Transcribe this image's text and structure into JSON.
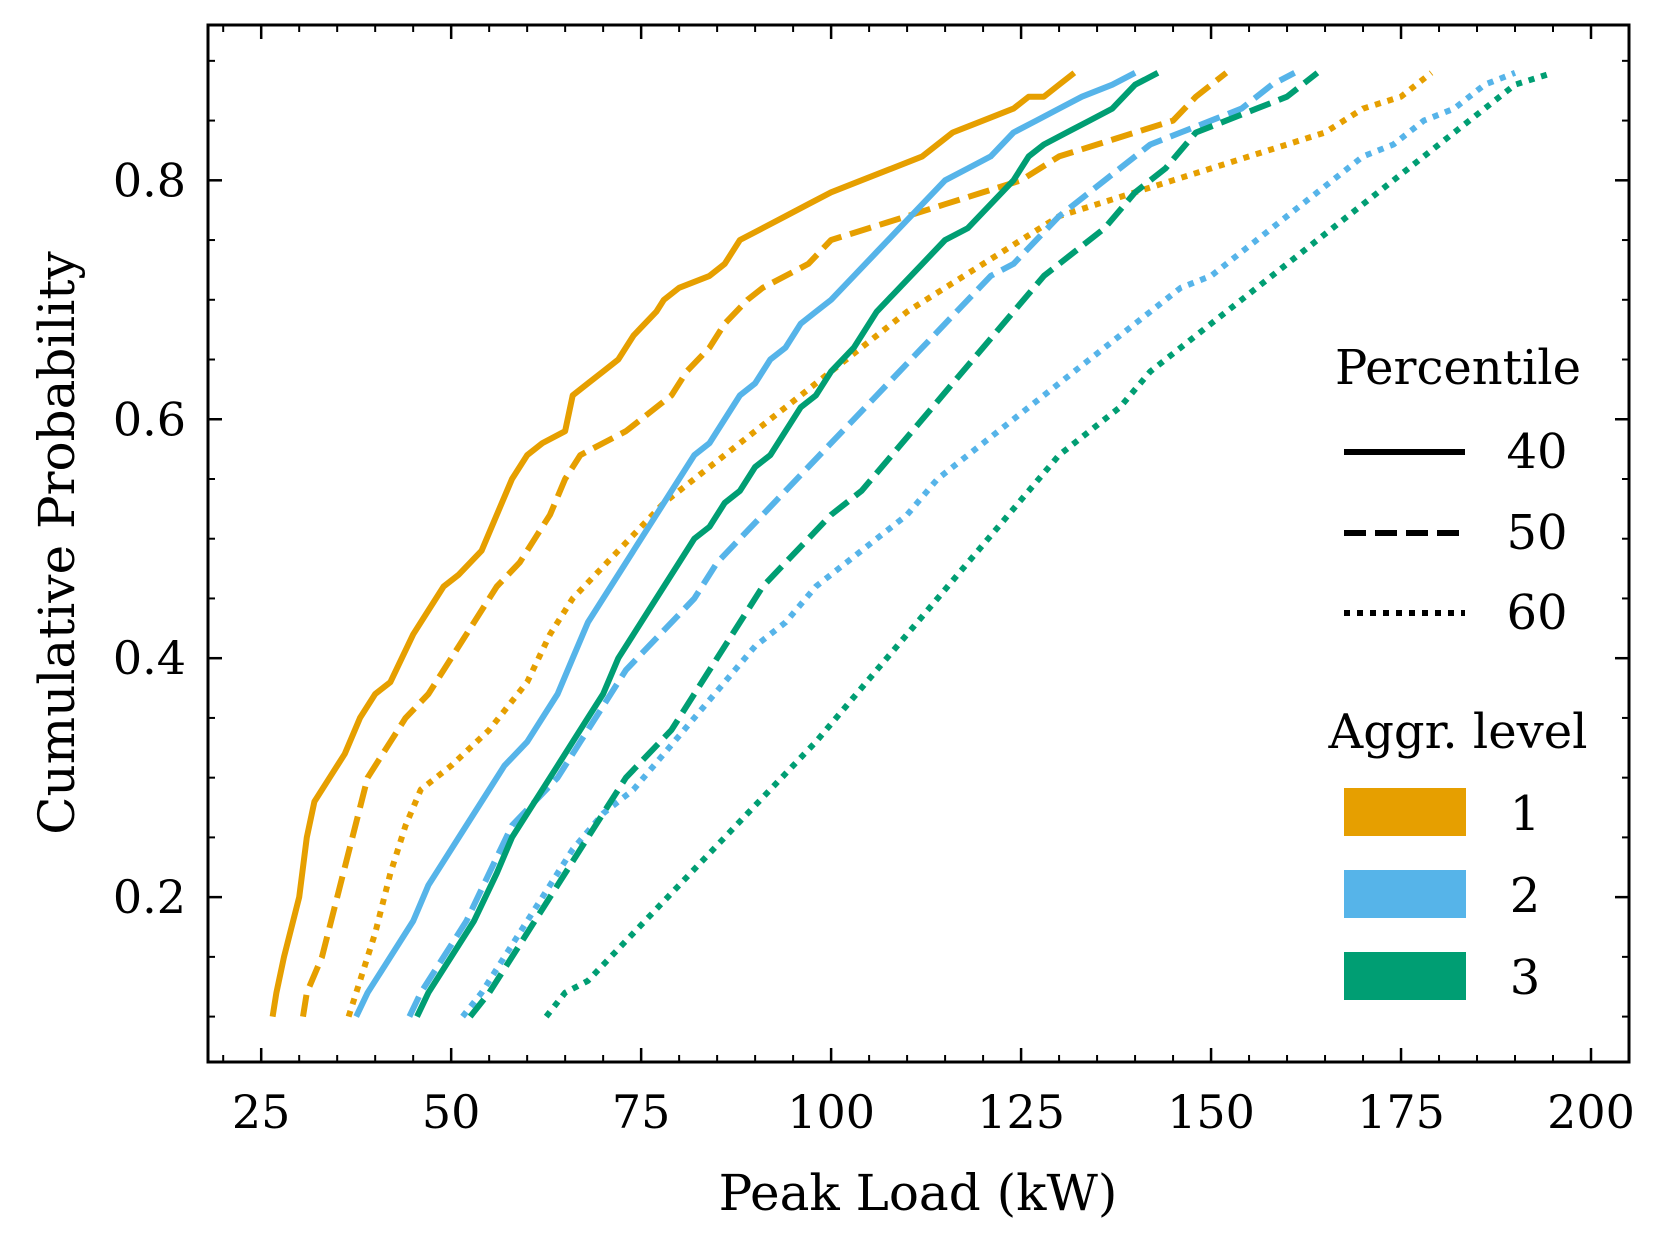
{
  "chart_data": {
    "type": "line",
    "title": "",
    "xlabel": "Peak Load (kW)",
    "ylabel": "Cumulative Probability",
    "xlim": [
      18,
      205
    ],
    "ylim": [
      0.062,
      0.93
    ],
    "xticks": [
      25,
      50,
      75,
      100,
      125,
      150,
      175,
      200
    ],
    "xtick_labels": [
      "25",
      "50",
      "75",
      "100",
      "125",
      "150",
      "175",
      "200"
    ],
    "yticks": [
      0.2,
      0.4,
      0.6,
      0.8
    ],
    "ytick_labels": [
      "0.2",
      "0.4",
      "0.6",
      "0.8"
    ],
    "grid": false,
    "legend_position": "right",
    "legend": {
      "percentile_title": "Percentile",
      "percentile_items": [
        {
          "label": "40",
          "style": "solid"
        },
        {
          "label": "50",
          "style": "dashed"
        },
        {
          "label": "60",
          "style": "dotted"
        }
      ],
      "aggr_title": "Aggr. level",
      "aggr_items": [
        {
          "label": "1",
          "color": "#E69F00"
        },
        {
          "label": "2",
          "color": "#56B4E9"
        },
        {
          "label": "3",
          "color": "#009E73"
        }
      ]
    },
    "series": [
      {
        "name": "Aggr. 1, Percentile 40",
        "color": "#E69F00",
        "style": "solid",
        "x": [
          26.5,
          27,
          28,
          30,
          31,
          32,
          34,
          36,
          38,
          40,
          42,
          45,
          47,
          49,
          51,
          54,
          56,
          58,
          60,
          62,
          65,
          66,
          68,
          70,
          72,
          74,
          77,
          78,
          80,
          84,
          86,
          88,
          91,
          94,
          97,
          100,
          104,
          108,
          112,
          116,
          120,
          124,
          126,
          128,
          130,
          132
        ],
        "y": [
          0.1,
          0.12,
          0.15,
          0.2,
          0.25,
          0.28,
          0.3,
          0.32,
          0.35,
          0.37,
          0.38,
          0.42,
          0.44,
          0.46,
          0.47,
          0.49,
          0.52,
          0.55,
          0.57,
          0.58,
          0.59,
          0.62,
          0.63,
          0.64,
          0.65,
          0.67,
          0.69,
          0.7,
          0.71,
          0.72,
          0.73,
          0.75,
          0.76,
          0.77,
          0.78,
          0.79,
          0.8,
          0.81,
          0.82,
          0.84,
          0.85,
          0.86,
          0.87,
          0.87,
          0.88,
          0.89
        ]
      },
      {
        "name": "Aggr. 1, Percentile 50",
        "color": "#E69F00",
        "style": "dashed",
        "x": [
          30.5,
          31,
          33,
          35,
          37,
          39,
          42,
          44,
          47,
          49,
          52,
          54,
          56,
          59,
          61,
          63,
          65,
          67,
          70,
          73,
          75,
          77,
          79,
          81,
          84,
          86,
          89,
          91,
          94,
          97,
          100,
          105,
          110,
          115,
          120,
          125,
          130,
          135,
          140,
          145,
          148,
          152
        ],
        "y": [
          0.1,
          0.12,
          0.15,
          0.2,
          0.25,
          0.3,
          0.33,
          0.35,
          0.37,
          0.39,
          0.42,
          0.44,
          0.46,
          0.48,
          0.5,
          0.52,
          0.55,
          0.57,
          0.58,
          0.59,
          0.6,
          0.61,
          0.62,
          0.64,
          0.66,
          0.68,
          0.7,
          0.71,
          0.72,
          0.73,
          0.75,
          0.76,
          0.77,
          0.78,
          0.79,
          0.8,
          0.82,
          0.83,
          0.84,
          0.85,
          0.87,
          0.89
        ]
      },
      {
        "name": "Aggr. 1, Percentile 60",
        "color": "#E69F00",
        "style": "dotted",
        "x": [
          36.5,
          38,
          40,
          42,
          44,
          46,
          50,
          55,
          60,
          63,
          66,
          69,
          72,
          75,
          78,
          82,
          86,
          90,
          94,
          98,
          102,
          106,
          110,
          115,
          120,
          125,
          130,
          135,
          140,
          145,
          150,
          155,
          160,
          165,
          170,
          175,
          179
        ],
        "y": [
          0.1,
          0.13,
          0.17,
          0.22,
          0.26,
          0.29,
          0.31,
          0.34,
          0.38,
          0.42,
          0.45,
          0.47,
          0.49,
          0.51,
          0.53,
          0.55,
          0.57,
          0.59,
          0.61,
          0.63,
          0.65,
          0.67,
          0.69,
          0.71,
          0.73,
          0.75,
          0.77,
          0.78,
          0.79,
          0.8,
          0.81,
          0.82,
          0.83,
          0.84,
          0.86,
          0.87,
          0.89
        ]
      },
      {
        "name": "Aggr. 2, Percentile 40",
        "color": "#56B4E9",
        "style": "solid",
        "x": [
          37.5,
          39,
          42,
          45,
          47,
          49,
          51,
          53,
          55,
          57,
          60,
          62,
          64,
          66,
          68,
          70,
          72,
          74,
          76,
          78,
          80,
          82,
          84,
          86,
          88,
          90,
          92,
          94,
          96,
          98,
          100,
          103,
          106,
          109,
          112,
          115,
          118,
          121,
          124,
          127,
          130,
          133,
          137,
          140
        ],
        "y": [
          0.1,
          0.12,
          0.15,
          0.18,
          0.21,
          0.23,
          0.25,
          0.27,
          0.29,
          0.31,
          0.33,
          0.35,
          0.37,
          0.4,
          0.43,
          0.45,
          0.47,
          0.49,
          0.51,
          0.53,
          0.55,
          0.57,
          0.58,
          0.6,
          0.62,
          0.63,
          0.65,
          0.66,
          0.68,
          0.69,
          0.7,
          0.72,
          0.74,
          0.76,
          0.78,
          0.8,
          0.81,
          0.82,
          0.84,
          0.85,
          0.86,
          0.87,
          0.88,
          0.89
        ]
      },
      {
        "name": "Aggr. 2, Percentile 50",
        "color": "#56B4E9",
        "style": "dashed",
        "x": [
          44.5,
          46,
          49,
          52,
          55,
          58,
          61,
          64,
          67,
          70,
          73,
          76,
          79,
          82,
          85,
          88,
          91,
          94,
          97,
          100,
          103,
          106,
          109,
          112,
          115,
          118,
          121,
          124,
          127,
          130,
          134,
          138,
          142,
          146,
          150,
          154,
          158,
          161
        ],
        "y": [
          0.1,
          0.12,
          0.15,
          0.18,
          0.22,
          0.26,
          0.28,
          0.3,
          0.33,
          0.36,
          0.39,
          0.41,
          0.43,
          0.45,
          0.48,
          0.5,
          0.52,
          0.54,
          0.56,
          0.58,
          0.6,
          0.62,
          0.64,
          0.66,
          0.68,
          0.7,
          0.72,
          0.73,
          0.75,
          0.77,
          0.79,
          0.81,
          0.83,
          0.84,
          0.85,
          0.86,
          0.88,
          0.89
        ]
      },
      {
        "name": "Aggr. 2, Percentile 60",
        "color": "#56B4E9",
        "style": "dotted",
        "x": [
          51.5,
          54,
          57,
          60,
          63,
          66,
          70,
          74,
          78,
          82,
          86,
          90,
          94,
          98,
          102,
          106,
          110,
          114,
          118,
          122,
          126,
          130,
          134,
          138,
          142,
          146,
          150,
          154,
          158,
          162,
          166,
          170,
          174,
          178,
          182,
          186,
          190
        ],
        "y": [
          0.1,
          0.12,
          0.15,
          0.18,
          0.21,
          0.24,
          0.27,
          0.29,
          0.32,
          0.35,
          0.38,
          0.41,
          0.43,
          0.46,
          0.48,
          0.5,
          0.52,
          0.55,
          0.57,
          0.59,
          0.61,
          0.63,
          0.65,
          0.67,
          0.69,
          0.71,
          0.72,
          0.74,
          0.76,
          0.78,
          0.8,
          0.82,
          0.83,
          0.85,
          0.86,
          0.88,
          0.89
        ]
      },
      {
        "name": "Aggr. 3, Percentile 40",
        "color": "#009E73",
        "style": "solid",
        "x": [
          45.5,
          47,
          50,
          53,
          56,
          58,
          60,
          62,
          64,
          66,
          68,
          70,
          72,
          74,
          76,
          78,
          80,
          82,
          84,
          86,
          88,
          90,
          92,
          94,
          96,
          98,
          100,
          103,
          106,
          109,
          112,
          115,
          118,
          121,
          124,
          126,
          128,
          131,
          134,
          137,
          140,
          143
        ],
        "y": [
          0.1,
          0.12,
          0.15,
          0.18,
          0.22,
          0.25,
          0.27,
          0.29,
          0.31,
          0.33,
          0.35,
          0.37,
          0.4,
          0.42,
          0.44,
          0.46,
          0.48,
          0.5,
          0.51,
          0.53,
          0.54,
          0.56,
          0.57,
          0.59,
          0.61,
          0.62,
          0.64,
          0.66,
          0.69,
          0.71,
          0.73,
          0.75,
          0.76,
          0.78,
          0.8,
          0.82,
          0.83,
          0.84,
          0.85,
          0.86,
          0.88,
          0.89
        ]
      },
      {
        "name": "Aggr. 3, Percentile 50",
        "color": "#009E73",
        "style": "dashed",
        "x": [
          52.5,
          55,
          58,
          61,
          64,
          66,
          68,
          70,
          73,
          76,
          79,
          82,
          85,
          88,
          91,
          94,
          97,
          100,
          104,
          108,
          112,
          116,
          120,
          124,
          128,
          132,
          136,
          140,
          144,
          148,
          152,
          156,
          160,
          164
        ],
        "y": [
          0.1,
          0.12,
          0.15,
          0.18,
          0.21,
          0.23,
          0.25,
          0.27,
          0.3,
          0.32,
          0.34,
          0.37,
          0.4,
          0.43,
          0.46,
          0.48,
          0.5,
          0.52,
          0.54,
          0.57,
          0.6,
          0.63,
          0.66,
          0.69,
          0.72,
          0.74,
          0.76,
          0.79,
          0.81,
          0.84,
          0.85,
          0.86,
          0.87,
          0.89
        ]
      },
      {
        "name": "Aggr. 3, Percentile 60",
        "color": "#009E73",
        "style": "dotted",
        "x": [
          62.5,
          65,
          68,
          71,
          74,
          77,
          80,
          83,
          86,
          89,
          92,
          95,
          98,
          102,
          106,
          110,
          114,
          118,
          122,
          126,
          130,
          134,
          138,
          142,
          146,
          150,
          154,
          158,
          162,
          166,
          170,
          174,
          178,
          182,
          186,
          190,
          195
        ],
        "y": [
          0.1,
          0.12,
          0.13,
          0.15,
          0.17,
          0.19,
          0.21,
          0.23,
          0.25,
          0.27,
          0.29,
          0.31,
          0.33,
          0.36,
          0.39,
          0.42,
          0.45,
          0.48,
          0.51,
          0.54,
          0.57,
          0.59,
          0.61,
          0.64,
          0.66,
          0.68,
          0.7,
          0.72,
          0.74,
          0.76,
          0.78,
          0.8,
          0.82,
          0.84,
          0.86,
          0.88,
          0.89
        ]
      }
    ]
  }
}
